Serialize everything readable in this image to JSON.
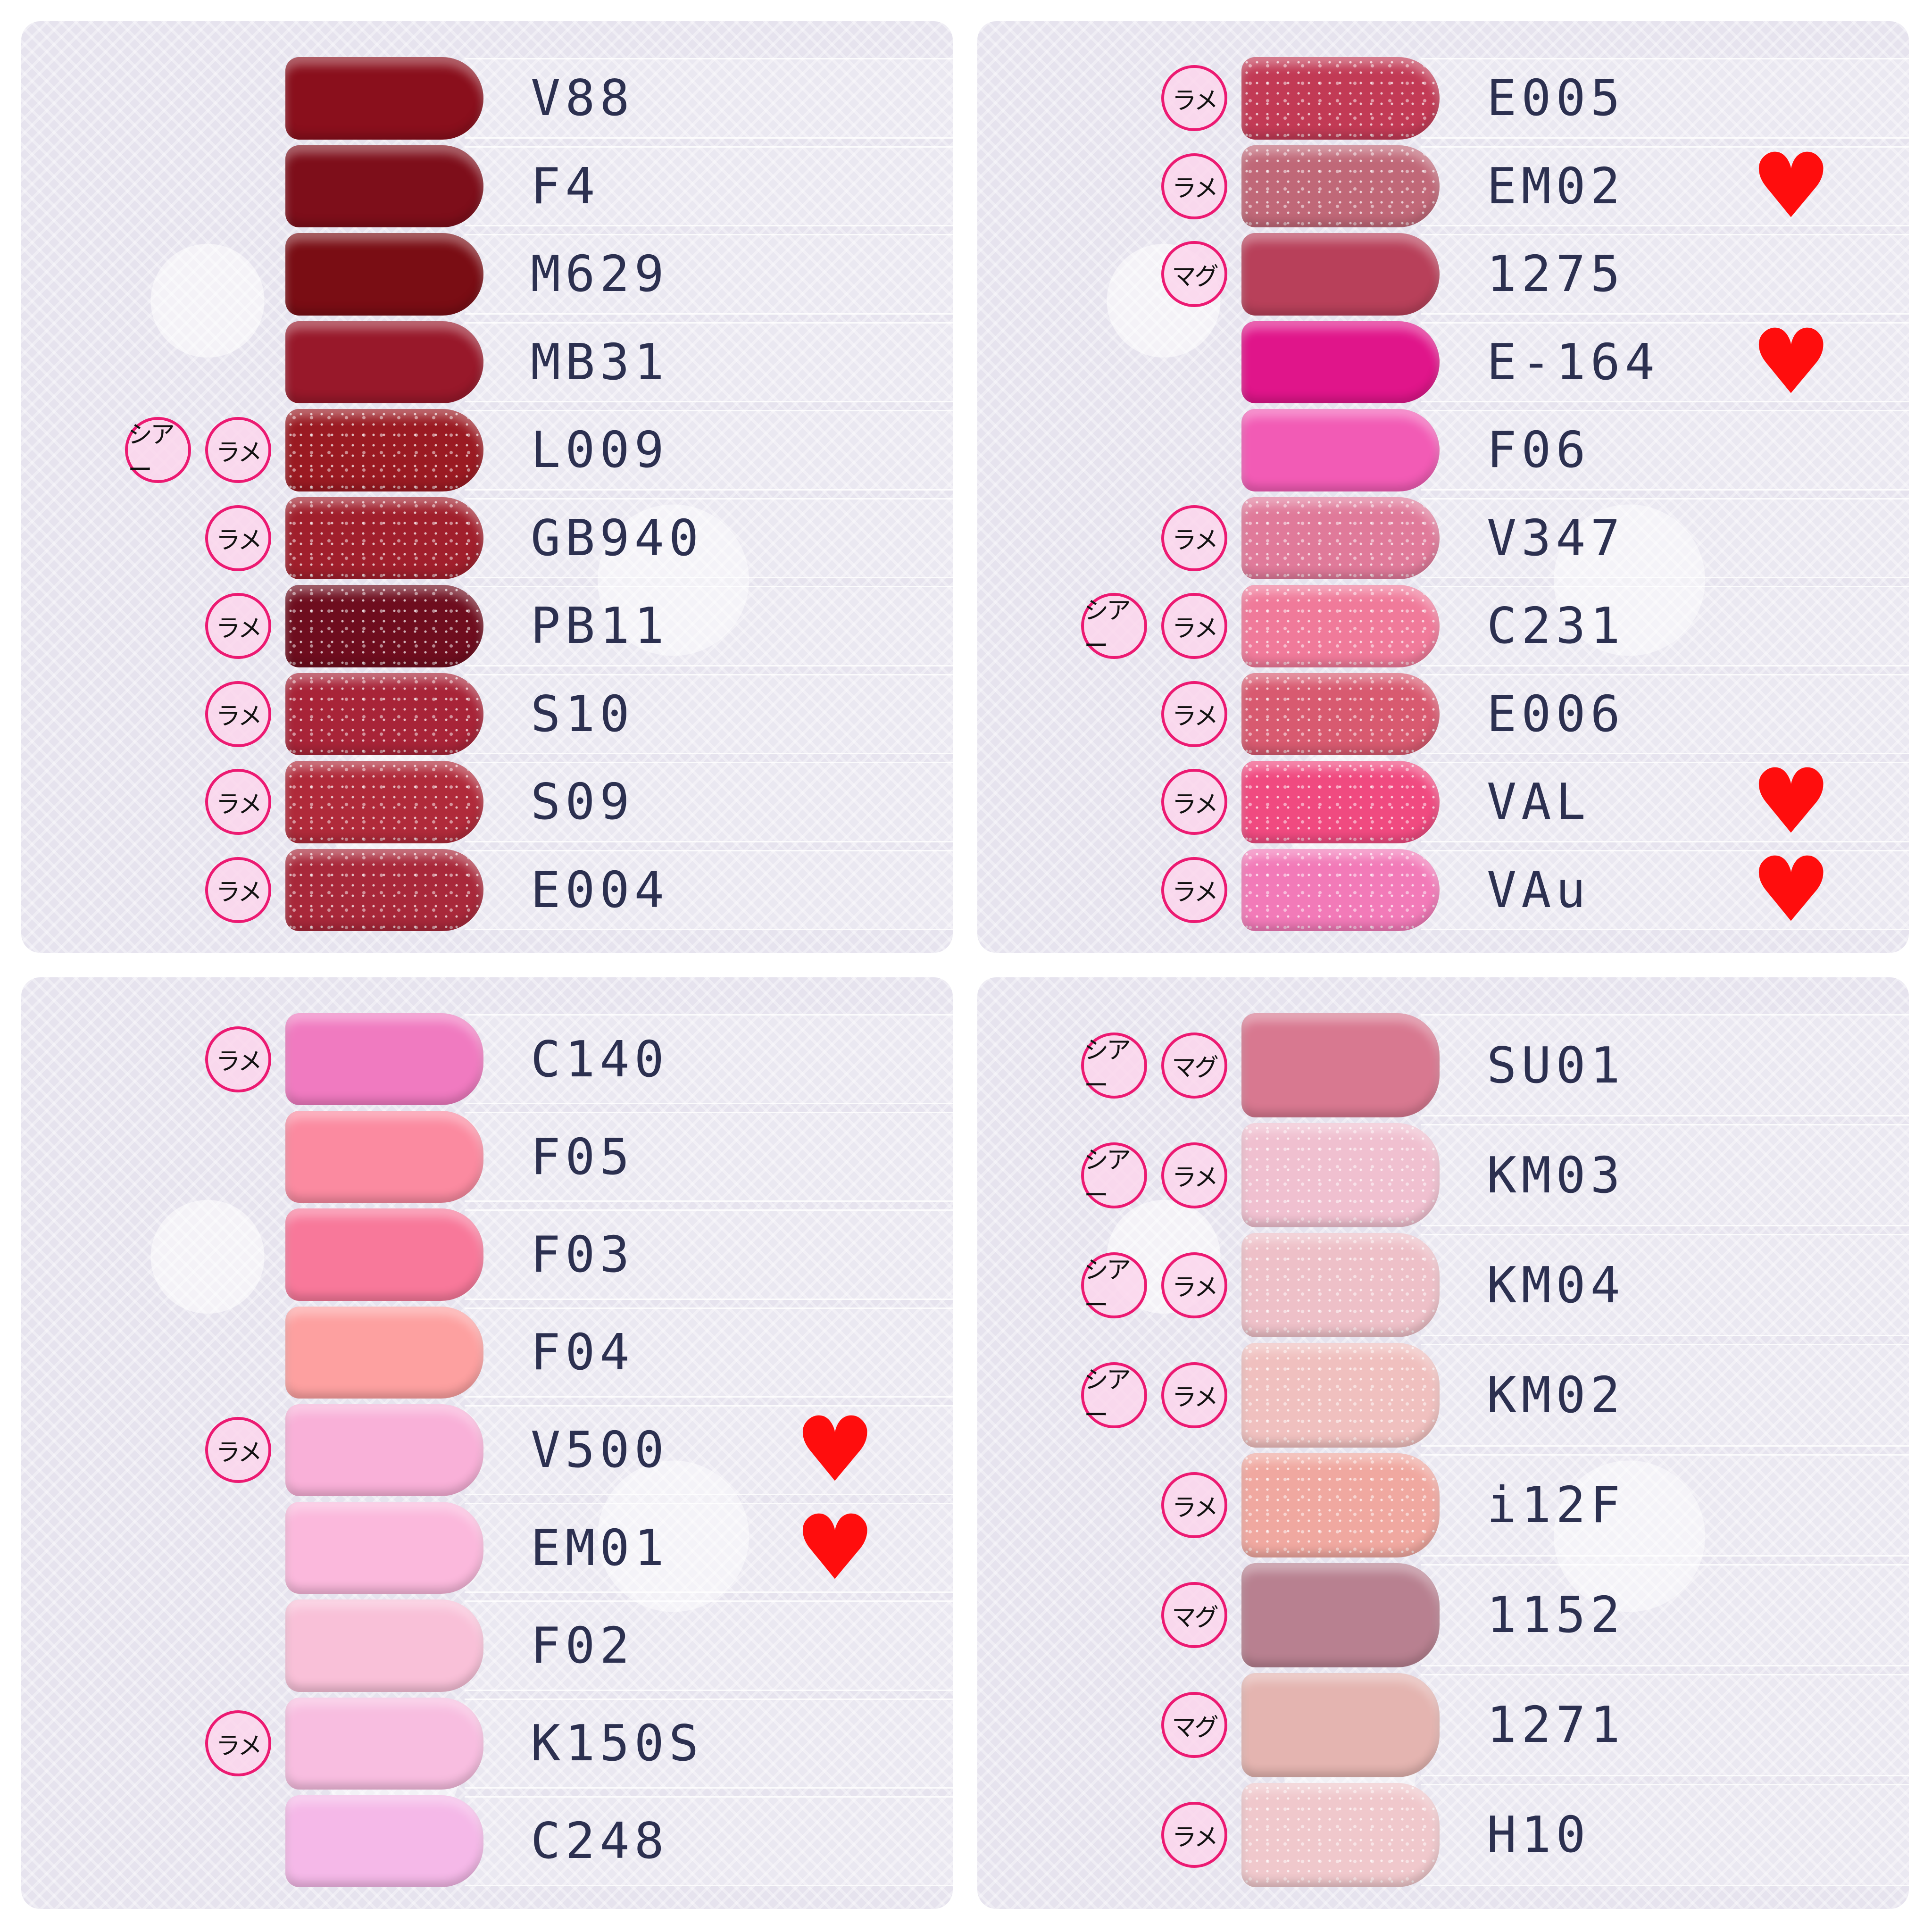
{
  "heart_color": "#ff0d0d",
  "tag_border_color": "#ec1a72",
  "panels": [
    {
      "rows": [
        {
          "label": "V88",
          "color": "#8a0f1c",
          "tags": [],
          "favorite": false,
          "glitter": false
        },
        {
          "label": "F4",
          "color": "#7e0e1a",
          "tags": [],
          "favorite": false,
          "glitter": false
        },
        {
          "label": "M629",
          "color": "#7a0d14",
          "tags": [],
          "favorite": false,
          "glitter": false
        },
        {
          "label": "MB31",
          "color": "#98182a",
          "tags": [],
          "favorite": false,
          "glitter": false
        },
        {
          "label": "L009",
          "color": "#9a1a22",
          "tags": [
            "シアー",
            "ラメ"
          ],
          "favorite": false,
          "glitter": true
        },
        {
          "label": "GB940",
          "color": "#a01f2c",
          "tags": [
            "ラメ"
          ],
          "favorite": false,
          "glitter": true
        },
        {
          "label": "PB11",
          "color": "#6e0d1e",
          "tags": [
            "ラメ"
          ],
          "favorite": false,
          "glitter": true
        },
        {
          "label": "S10",
          "color": "#a82438",
          "tags": [
            "ラメ"
          ],
          "favorite": false,
          "glitter": true
        },
        {
          "label": "S09",
          "color": "#b02a3a",
          "tags": [
            "ラメ"
          ],
          "favorite": false,
          "glitter": true
        },
        {
          "label": "E004",
          "color": "#a8283a",
          "tags": [
            "ラメ"
          ],
          "favorite": false,
          "glitter": true
        }
      ]
    },
    {
      "rows": [
        {
          "label": "E005",
          "color": "#c23a55",
          "tags": [
            "ラメ"
          ],
          "favorite": false,
          "glitter": true
        },
        {
          "label": "EM02",
          "color": "#c06878",
          "tags": [
            "ラメ"
          ],
          "favorite": true,
          "glitter": true
        },
        {
          "label": "1275",
          "color": "#b8405a",
          "tags": [
            "マグ"
          ],
          "favorite": false,
          "glitter": false
        },
        {
          "label": "E-164",
          "color": "#e0158a",
          "tags": [],
          "favorite": true,
          "glitter": false
        },
        {
          "label": "F06",
          "color": "#f25bb5",
          "tags": [],
          "favorite": false,
          "glitter": false
        },
        {
          "label": "V347",
          "color": "#e07a9a",
          "tags": [
            "ラメ"
          ],
          "favorite": false,
          "glitter": true
        },
        {
          "label": "C231",
          "color": "#f07a9a",
          "tags": [
            "シアー",
            "ラメ"
          ],
          "favorite": false,
          "glitter": true
        },
        {
          "label": "E006",
          "color": "#d85a70",
          "tags": [
            "ラメ"
          ],
          "favorite": false,
          "glitter": true
        },
        {
          "label": "VAL",
          "color": "#f04a80",
          "tags": [
            "ラメ"
          ],
          "favorite": true,
          "glitter": true
        },
        {
          "label": "VAu",
          "color": "#f27ab8",
          "tags": [
            "ラメ"
          ],
          "favorite": true,
          "glitter": true
        }
      ]
    },
    {
      "rows": [
        {
          "label": "C140",
          "color": "#f07ac0",
          "tags": [
            "ラメ"
          ],
          "favorite": false,
          "glitter": false
        },
        {
          "label": "F05",
          "color": "#fb8aa0",
          "tags": [],
          "favorite": false,
          "glitter": false
        },
        {
          "label": "F03",
          "color": "#f8789a",
          "tags": [],
          "favorite": false,
          "glitter": false
        },
        {
          "label": "F04",
          "color": "#fda0a0",
          "tags": [],
          "favorite": false,
          "glitter": false
        },
        {
          "label": "V500",
          "color": "#f9b0d8",
          "tags": [
            "ラメ"
          ],
          "favorite": true,
          "glitter": false
        },
        {
          "label": "EM01",
          "color": "#fbb8dc",
          "tags": [],
          "favorite": true,
          "glitter": false
        },
        {
          "label": "F02",
          "color": "#f9c0d8",
          "tags": [],
          "favorite": false,
          "glitter": false
        },
        {
          "label": "K150S",
          "color": "#f8bde0",
          "tags": [
            "ラメ"
          ],
          "favorite": false,
          "glitter": false
        },
        {
          "label": "C248",
          "color": "#f5b8e8",
          "tags": [],
          "favorite": false,
          "glitter": false
        }
      ]
    },
    {
      "rows": [
        {
          "label": "SU01",
          "color": "#d87890",
          "tags": [
            "シアー",
            "マグ"
          ],
          "favorite": false,
          "glitter": false
        },
        {
          "label": "KM03",
          "color": "#f0c0d0",
          "tags": [
            "シアー",
            "ラメ"
          ],
          "favorite": false,
          "glitter": true
        },
        {
          "label": "KM04",
          "color": "#eec0c8",
          "tags": [
            "シアー",
            "ラメ"
          ],
          "favorite": false,
          "glitter": true
        },
        {
          "label": "KM02",
          "color": "#f0c0bf",
          "tags": [
            "シアー",
            "ラメ"
          ],
          "favorite": false,
          "glitter": true
        },
        {
          "label": "i12F",
          "color": "#f0a8a0",
          "tags": [
            "ラメ"
          ],
          "favorite": false,
          "glitter": true
        },
        {
          "label": "1152",
          "color": "#b88090",
          "tags": [
            "マグ"
          ],
          "favorite": false,
          "glitter": false
        },
        {
          "label": "1271",
          "color": "#e4b4b0",
          "tags": [
            "マグ"
          ],
          "favorite": false,
          "glitter": false
        },
        {
          "label": "H10",
          "color": "#f0c8cc",
          "tags": [
            "ラメ"
          ],
          "favorite": false,
          "glitter": true
        }
      ]
    }
  ]
}
